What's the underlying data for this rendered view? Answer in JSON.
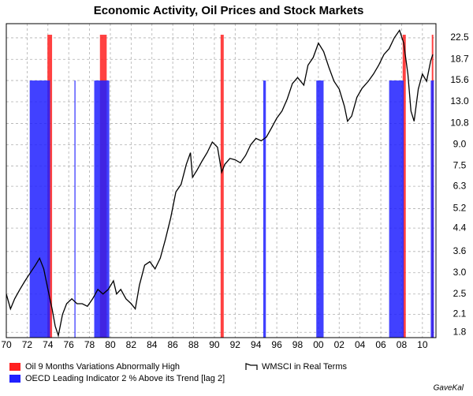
{
  "chart_data": {
    "type": "line",
    "title": "Economic Activity, Oil Prices and Stock Markets",
    "source": "GaveKal",
    "log_scale": true,
    "grid": true,
    "y_axis_side": "right",
    "xlim": [
      1970,
      2011.3
    ],
    "ylim": [
      1.72,
      25.4
    ],
    "xticks": [
      {
        "value": 1970,
        "label": "70"
      },
      {
        "value": 1972,
        "label": "72"
      },
      {
        "value": 1974,
        "label": "74"
      },
      {
        "value": 1976,
        "label": "76"
      },
      {
        "value": 1978,
        "label": "78"
      },
      {
        "value": 1980,
        "label": "80"
      },
      {
        "value": 1982,
        "label": "82"
      },
      {
        "value": 1984,
        "label": "84"
      },
      {
        "value": 1986,
        "label": "86"
      },
      {
        "value": 1988,
        "label": "88"
      },
      {
        "value": 1990,
        "label": "90"
      },
      {
        "value": 1992,
        "label": "92"
      },
      {
        "value": 1994,
        "label": "94"
      },
      {
        "value": 1996,
        "label": "96"
      },
      {
        "value": 1998,
        "label": "98"
      },
      {
        "value": 2000,
        "label": "00"
      },
      {
        "value": 2002,
        "label": "02"
      },
      {
        "value": 2004,
        "label": "04"
      },
      {
        "value": 2006,
        "label": "06"
      },
      {
        "value": 2008,
        "label": "08"
      },
      {
        "value": 2010,
        "label": "10"
      }
    ],
    "yticks": [
      1.8,
      2.1,
      2.5,
      {
        "value": 3,
        "label": "3.0"
      },
      3.6,
      4.4,
      5.2,
      6.3,
      7.5,
      {
        "value": 9,
        "label": "9.0"
      },
      10.8,
      {
        "value": 13,
        "label": "13.0"
      },
      15.6,
      18.7,
      22.5
    ],
    "series": [
      {
        "name": "Oil 9 Months Variations Abnormally High",
        "type": "bar",
        "color": "#ff2020",
        "level": 23.1,
        "periods": [
          [
            1973.95,
            1974.4
          ],
          [
            1979.0,
            1979.65
          ],
          [
            1990.6,
            1990.9
          ],
          [
            2008.1,
            2008.4
          ],
          [
            2010.9,
            2011.05
          ]
        ]
      },
      {
        "name": "OECD Leading Indicator 2 % Above its Trend [lag 2]",
        "type": "bar",
        "color": "#2020ff",
        "level": 15.6,
        "periods": [
          [
            1972.25,
            1974.2
          ],
          [
            1976.55,
            1976.65
          ],
          [
            1978.45,
            1979.9
          ],
          [
            1994.7,
            1994.95
          ],
          [
            1999.8,
            2000.5
          ],
          [
            2006.8,
            2008.2
          ],
          [
            2010.8,
            2011.1
          ]
        ]
      },
      {
        "name": "WMSCI in Real Terms",
        "type": "line",
        "color": "#000000",
        "x": [
          1970.0,
          1970.4,
          1970.8,
          1971.3,
          1971.8,
          1972.3,
          1972.8,
          1973.2,
          1973.6,
          1974.0,
          1974.4,
          1974.7,
          1975.0,
          1975.4,
          1975.8,
          1976.3,
          1976.8,
          1977.3,
          1977.8,
          1978.3,
          1978.8,
          1979.3,
          1979.8,
          1980.3,
          1980.6,
          1981.0,
          1981.5,
          1982.0,
          1982.4,
          1982.8,
          1983.3,
          1983.8,
          1984.3,
          1984.8,
          1985.3,
          1985.8,
          1986.3,
          1986.8,
          1987.3,
          1987.7,
          1987.9,
          1988.3,
          1988.8,
          1989.3,
          1989.8,
          1990.3,
          1990.7,
          1991.0,
          1991.5,
          1992.0,
          1992.5,
          1993.0,
          1993.5,
          1994.0,
          1994.5,
          1995.0,
          1995.5,
          1996.0,
          1996.5,
          1997.0,
          1997.5,
          1998.0,
          1998.6,
          1999.0,
          1999.5,
          2000.0,
          2000.5,
          2001.0,
          2001.5,
          2002.0,
          2002.5,
          2002.8,
          2003.2,
          2003.7,
          2004.2,
          2004.8,
          2005.3,
          2005.8,
          2006.3,
          2006.8,
          2007.3,
          2007.8,
          2008.2,
          2008.6,
          2008.9,
          2009.2,
          2009.6,
          2010.0,
          2010.4,
          2010.8,
          2011.0
        ],
        "values": [
          2.5,
          2.2,
          2.4,
          2.6,
          2.8,
          3.0,
          3.2,
          3.4,
          3.1,
          2.6,
          2.2,
          1.9,
          1.75,
          2.1,
          2.3,
          2.4,
          2.3,
          2.3,
          2.25,
          2.4,
          2.6,
          2.5,
          2.6,
          2.8,
          2.5,
          2.6,
          2.4,
          2.3,
          2.2,
          2.7,
          3.2,
          3.3,
          3.1,
          3.4,
          4.0,
          4.8,
          6.0,
          6.4,
          7.6,
          8.4,
          6.8,
          7.2,
          7.8,
          8.4,
          9.2,
          8.8,
          7.1,
          7.6,
          8.0,
          7.9,
          7.7,
          8.2,
          9.0,
          9.5,
          9.3,
          9.6,
          10.4,
          11.3,
          12.0,
          13.3,
          15.2,
          16.0,
          15.0,
          17.8,
          19.0,
          21.5,
          20.0,
          17.5,
          15.5,
          14.5,
          12.5,
          11.0,
          11.5,
          13.5,
          14.6,
          15.5,
          16.5,
          17.8,
          19.5,
          20.5,
          22.5,
          24.0,
          21.5,
          16.5,
          12.0,
          11.0,
          14.5,
          16.5,
          15.5,
          18.5,
          19.5
        ]
      }
    ]
  }
}
